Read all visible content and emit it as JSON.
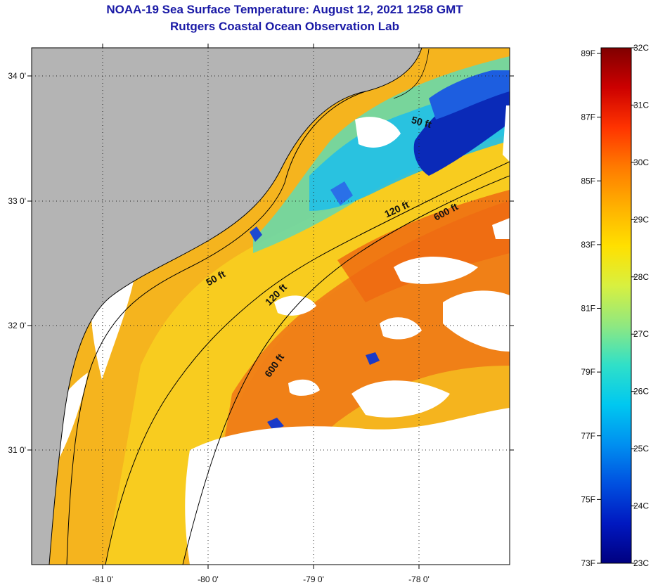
{
  "header": {
    "title": "NOAA-19 Sea Surface Temperature:  August 12, 2021 1258 GMT",
    "subtitle": "Rutgers Coastal Ocean Observation Lab"
  },
  "map": {
    "lon_labels": [
      "-81 0'",
      "-80 0'",
      "-79 0'",
      "-78 0'"
    ],
    "lat_labels": [
      "34 0'",
      "33 0'",
      "32 0'",
      "31 0'"
    ],
    "contour_labels": [
      "50 ft",
      "120 ft",
      "600 ft",
      "50 ft",
      "120 ft",
      "600 ft"
    ],
    "colors": {
      "land": "#b4b4b4",
      "cloud": "#ffffff",
      "coast": "#000000"
    }
  },
  "colorbar": {
    "fahrenheit_labels": [
      "89F",
      "87F",
      "85F",
      "83F",
      "81F",
      "79F",
      "77F",
      "75F",
      "73F"
    ],
    "celsius_labels": [
      "32C",
      "31C",
      "30C",
      "29C",
      "28C",
      "27C",
      "26C",
      "25C",
      "24C",
      "23C"
    ],
    "stops": [
      "#800000",
      "#cc0000",
      "#ff3300",
      "#ff7a00",
      "#ffb000",
      "#ffe000",
      "#d8f040",
      "#90e880",
      "#30e0c8",
      "#00c8f0",
      "#0090f0",
      "#0050e0",
      "#0018c0",
      "#000080"
    ]
  }
}
